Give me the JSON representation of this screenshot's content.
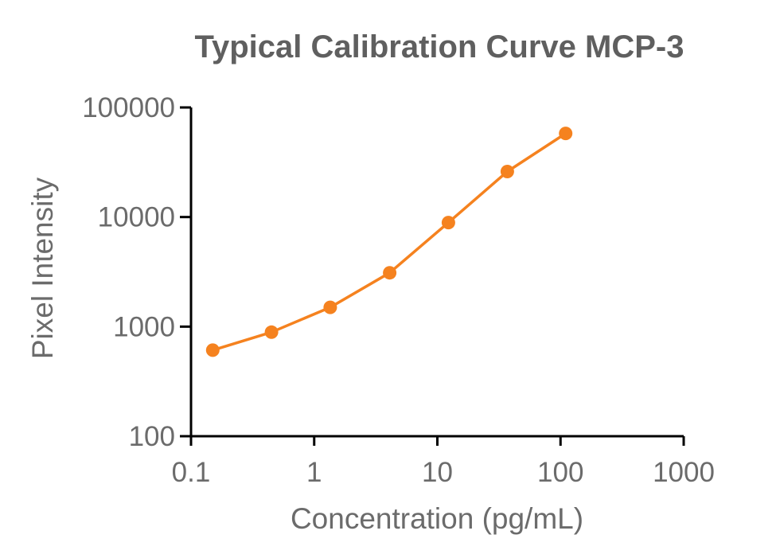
{
  "chart_data": {
    "type": "line",
    "title": "Typical Calibration Curve MCP-3",
    "xlabel": "Concentration (pg/mL)",
    "ylabel": "Pixel Intensity",
    "xscale": "log",
    "yscale": "log",
    "xlim": [
      0.1,
      1000
    ],
    "ylim": [
      100,
      100000
    ],
    "xticks": [
      0.1,
      1,
      10,
      100,
      1000
    ],
    "xtick_labels": [
      "0.1",
      "1",
      "10",
      "100",
      "1000"
    ],
    "yticks": [
      100,
      1000,
      10000,
      100000
    ],
    "ytick_labels": [
      "100",
      "1000",
      "10000",
      "100000"
    ],
    "grid": false,
    "legend": "none",
    "series": [
      {
        "color": "#f5821f",
        "marker": "circle",
        "x": [
          0.15,
          0.45,
          1.35,
          4.1,
          12.3,
          37,
          110
        ],
        "y": [
          610,
          890,
          1500,
          3100,
          8900,
          26000,
          58000
        ]
      }
    ]
  },
  "colors": {
    "axis": "#000000",
    "text": "#6b6b6b",
    "title": "#5f5f5f",
    "series": "#f5821f"
  }
}
